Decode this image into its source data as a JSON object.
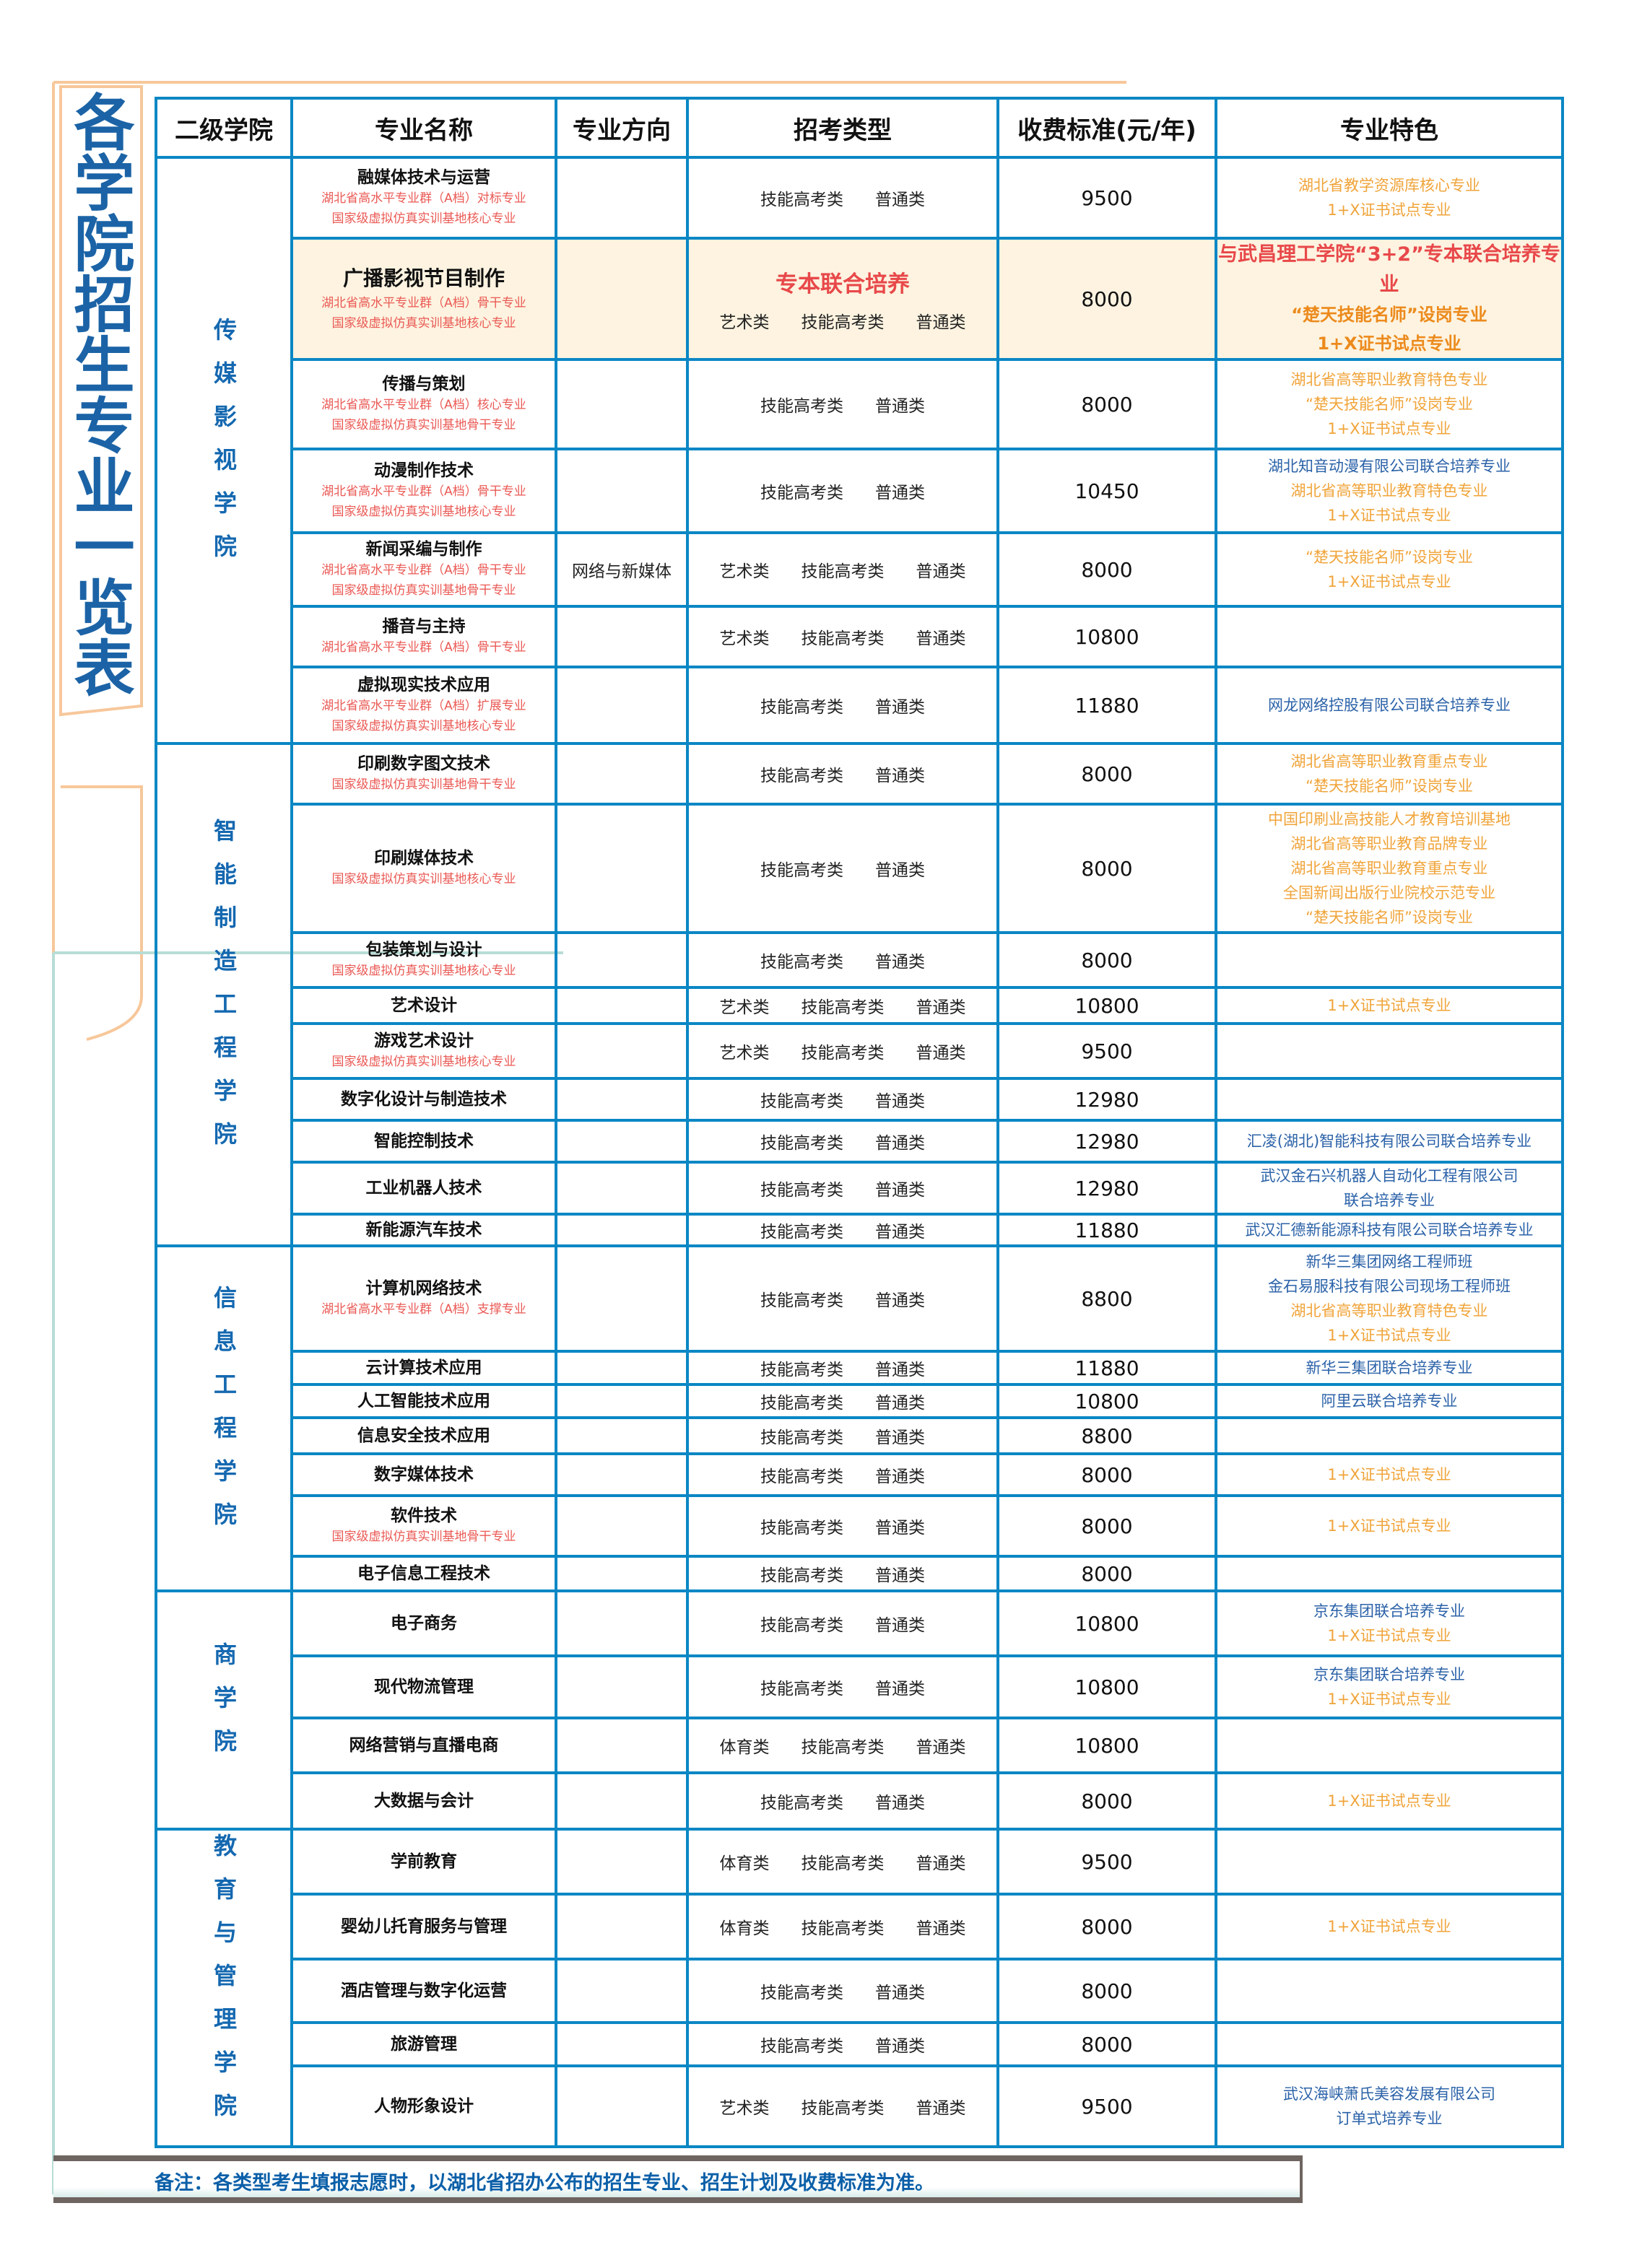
{
  "title": "各学院招生专业一览表",
  "headers": [
    "二级学院",
    "专业名称",
    "专业方向",
    "招考类型",
    "收费标准(元/年)",
    "专业特色"
  ],
  "colors": {
    "line": "#0a87c4",
    "title": "#1b63a6",
    "orange": "#f0a43a",
    "blue": "#2b62a8",
    "red": "#e8484a",
    "highlight": "#fdf3e0"
  },
  "colleges": [
    {
      "name": "传媒影视学院",
      "rows": 7
    },
    {
      "name": "智能制造工程学院",
      "rows": 9
    },
    {
      "name": "信息工程学院",
      "rows": 7
    },
    {
      "name": "商学院",
      "rows": 4
    },
    {
      "name": "教育与管理学院",
      "rows": 5
    }
  ],
  "rows": [
    {
      "name": "融媒体技术与运营",
      "subs": [
        "湖北省高水平专业群（A档）对标专业",
        "国家级虚拟仿真实训基地核心专业"
      ],
      "direction": "",
      "exam": [
        "技能高考类",
        "普通类"
      ],
      "fee": "9500",
      "features": [
        {
          "t": "湖北省教学资源库核心专业",
          "c": "orange"
        },
        {
          "t": "1+X证书试点专业",
          "c": "orange"
        }
      ]
    },
    {
      "name": "广播影视节目制作",
      "highlight": true,
      "joint": "专本联合培养",
      "subs": [
        "湖北省高水平专业群（A档）骨干专业",
        "国家级虚拟仿真实训基地核心专业"
      ],
      "direction": "",
      "exam": [
        "艺术类",
        "技能高考类",
        "普通类"
      ],
      "fee": "8000",
      "features": [
        {
          "t": "与武昌理工学院“3+2”专本联合培养专业",
          "c": "red"
        },
        {
          "t": "“楚天技能名师”设岗专业",
          "c": "orangeb"
        },
        {
          "t": "1+X证书试点专业",
          "c": "orangeb"
        }
      ]
    },
    {
      "name": "传播与策划",
      "subs": [
        "湖北省高水平专业群（A档）核心专业",
        "国家级虚拟仿真实训基地骨干专业"
      ],
      "direction": "",
      "exam": [
        "技能高考类",
        "普通类"
      ],
      "fee": "8000",
      "features": [
        {
          "t": "湖北省高等职业教育特色专业",
          "c": "orange"
        },
        {
          "t": "“楚天技能名师”设岗专业",
          "c": "orange"
        },
        {
          "t": "1+X证书试点专业",
          "c": "orange"
        }
      ]
    },
    {
      "name": "动漫制作技术",
      "subs": [
        "湖北省高水平专业群（A档）骨干专业",
        "国家级虚拟仿真实训基地核心专业"
      ],
      "direction": "",
      "exam": [
        "技能高考类",
        "普通类"
      ],
      "fee": "10450",
      "features": [
        {
          "t": "湖北知音动漫有限公司联合培养专业",
          "c": "blue"
        },
        {
          "t": "湖北省高等职业教育特色专业",
          "c": "orange"
        },
        {
          "t": "1+X证书试点专业",
          "c": "orange"
        }
      ]
    },
    {
      "name": "新闻采编与制作",
      "subs": [
        "湖北省高水平专业群（A档）骨干专业",
        "国家级虚拟仿真实训基地骨干专业"
      ],
      "direction": "网络与新媒体",
      "exam": [
        "艺术类",
        "技能高考类",
        "普通类"
      ],
      "fee": "8000",
      "features": [
        {
          "t": "“楚天技能名师”设岗专业",
          "c": "orange"
        },
        {
          "t": "1+X证书试点专业",
          "c": "orange"
        }
      ]
    },
    {
      "name": "播音与主持",
      "subs": [
        "湖北省高水平专业群（A档）骨干专业"
      ],
      "direction": "",
      "exam": [
        "艺术类",
        "技能高考类",
        "普通类"
      ],
      "fee": "10800",
      "features": []
    },
    {
      "name": "虚拟现实技术应用",
      "subs": [
        "湖北省高水平专业群（A档）扩展专业",
        "国家级虚拟仿真实训基地核心专业"
      ],
      "direction": "",
      "exam": [
        "技能高考类",
        "普通类"
      ],
      "fee": "11880",
      "features": [
        {
          "t": "网龙网络控股有限公司联合培养专业",
          "c": "blue"
        }
      ]
    },
    {
      "name": "印刷数字图文技术",
      "subs": [
        "国家级虚拟仿真实训基地骨干专业"
      ],
      "direction": "",
      "exam": [
        "技能高考类",
        "普通类"
      ],
      "fee": "8000",
      "features": [
        {
          "t": "湖北省高等职业教育重点专业",
          "c": "orange"
        },
        {
          "t": "“楚天技能名师”设岗专业",
          "c": "orange"
        }
      ]
    },
    {
      "name": "印刷媒体技术",
      "subs": [
        "国家级虚拟仿真实训基地核心专业"
      ],
      "direction": "",
      "exam": [
        "技能高考类",
        "普通类"
      ],
      "fee": "8000",
      "features": [
        {
          "t": "中国印刷业高技能人才教育培训基地",
          "c": "orange"
        },
        {
          "t": "湖北省高等职业教育品牌专业",
          "c": "orange"
        },
        {
          "t": "湖北省高等职业教育重点专业",
          "c": "orange"
        },
        {
          "t": "全国新闻出版行业院校示范专业",
          "c": "orange"
        },
        {
          "t": "“楚天技能名师”设岗专业",
          "c": "orange"
        }
      ]
    },
    {
      "name": "包装策划与设计",
      "subs": [
        "国家级虚拟仿真实训基地核心专业"
      ],
      "direction": "",
      "exam": [
        "技能高考类",
        "普通类"
      ],
      "fee": "8000",
      "features": []
    },
    {
      "name": "艺术设计",
      "subs": [],
      "direction": "",
      "exam": [
        "艺术类",
        "技能高考类",
        "普通类"
      ],
      "fee": "10800",
      "features": [
        {
          "t": "1+X证书试点专业",
          "c": "orange"
        }
      ]
    },
    {
      "name": "游戏艺术设计",
      "subs": [
        "国家级虚拟仿真实训基地核心专业"
      ],
      "direction": "",
      "exam": [
        "艺术类",
        "技能高考类",
        "普通类"
      ],
      "fee": "9500",
      "features": []
    },
    {
      "name": "数字化设计与制造技术",
      "subs": [],
      "direction": "",
      "exam": [
        "技能高考类",
        "普通类"
      ],
      "fee": "12980",
      "features": []
    },
    {
      "name": "智能控制技术",
      "subs": [],
      "direction": "",
      "exam": [
        "技能高考类",
        "普通类"
      ],
      "fee": "12980",
      "features": [
        {
          "t": "汇凌(湖北)智能科技有限公司联合培养专业",
          "c": "blue"
        }
      ]
    },
    {
      "name": "工业机器人技术",
      "subs": [],
      "direction": "",
      "exam": [
        "技能高考类",
        "普通类"
      ],
      "fee": "12980",
      "features": [
        {
          "t": "武汉金石兴机器人自动化工程有限公司",
          "c": "blue"
        },
        {
          "t": "联合培养专业",
          "c": "blue"
        }
      ]
    },
    {
      "name": "新能源汽车技术",
      "subs": [],
      "direction": "",
      "exam": [
        "技能高考类",
        "普通类"
      ],
      "fee": "11880",
      "features": [
        {
          "t": "武汉汇德新能源科技有限公司联合培养专业",
          "c": "blue"
        }
      ]
    },
    {
      "name": "计算机网络技术",
      "subs": [
        "湖北省高水平专业群（A档）支撑专业"
      ],
      "direction": "",
      "exam": [
        "技能高考类",
        "普通类"
      ],
      "fee": "8800",
      "features": [
        {
          "t": "新华三集团网络工程师班",
          "c": "blue"
        },
        {
          "t": "金石易服科技有限公司现场工程师班",
          "c": "blue"
        },
        {
          "t": "湖北省高等职业教育特色专业",
          "c": "orange"
        },
        {
          "t": "1+X证书试点专业",
          "c": "orange"
        }
      ]
    },
    {
      "name": "云计算技术应用",
      "subs": [],
      "direction": "",
      "exam": [
        "技能高考类",
        "普通类"
      ],
      "fee": "11880",
      "features": [
        {
          "t": "新华三集团联合培养专业",
          "c": "blue"
        }
      ]
    },
    {
      "name": "人工智能技术应用",
      "subs": [],
      "direction": "",
      "exam": [
        "技能高考类",
        "普通类"
      ],
      "fee": "10800",
      "features": [
        {
          "t": "阿里云联合培养专业",
          "c": "blue"
        }
      ]
    },
    {
      "name": "信息安全技术应用",
      "subs": [],
      "direction": "",
      "exam": [
        "技能高考类",
        "普通类"
      ],
      "fee": "8800",
      "features": []
    },
    {
      "name": "数字媒体技术",
      "subs": [],
      "direction": "",
      "exam": [
        "技能高考类",
        "普通类"
      ],
      "fee": "8000",
      "features": [
        {
          "t": "1+X证书试点专业",
          "c": "orange"
        }
      ]
    },
    {
      "name": "软件技术",
      "subs": [
        "国家级虚拟仿真实训基地骨干专业"
      ],
      "direction": "",
      "exam": [
        "技能高考类",
        "普通类"
      ],
      "fee": "8000",
      "features": [
        {
          "t": "1+X证书试点专业",
          "c": "orange"
        }
      ]
    },
    {
      "name": "电子信息工程技术",
      "subs": [],
      "direction": "",
      "exam": [
        "技能高考类",
        "普通类"
      ],
      "fee": "8000",
      "features": []
    },
    {
      "name": "电子商务",
      "subs": [],
      "direction": "",
      "exam": [
        "技能高考类",
        "普通类"
      ],
      "fee": "10800",
      "features": [
        {
          "t": "京东集团联合培养专业",
          "c": "blue"
        },
        {
          "t": "1+X证书试点专业",
          "c": "orange"
        }
      ]
    },
    {
      "name": "现代物流管理",
      "subs": [],
      "direction": "",
      "exam": [
        "技能高考类",
        "普通类"
      ],
      "fee": "10800",
      "features": [
        {
          "t": "京东集团联合培养专业",
          "c": "blue"
        },
        {
          "t": "1+X证书试点专业",
          "c": "orange"
        }
      ]
    },
    {
      "name": "网络营销与直播电商",
      "subs": [],
      "direction": "",
      "exam": [
        "体育类",
        "技能高考类",
        "普通类"
      ],
      "fee": "10800",
      "features": []
    },
    {
      "name": "大数据与会计",
      "subs": [],
      "direction": "",
      "exam": [
        "技能高考类",
        "普通类"
      ],
      "fee": "8000",
      "features": [
        {
          "t": "1+X证书试点专业",
          "c": "orange"
        }
      ]
    },
    {
      "name": "学前教育",
      "subs": [],
      "direction": "",
      "exam": [
        "体育类",
        "技能高考类",
        "普通类"
      ],
      "fee": "9500",
      "features": []
    },
    {
      "name": "婴幼儿托育服务与管理",
      "subs": [],
      "direction": "",
      "exam": [
        "体育类",
        "技能高考类",
        "普通类"
      ],
      "fee": "8000",
      "features": [
        {
          "t": "1+X证书试点专业",
          "c": "orange"
        }
      ]
    },
    {
      "name": "酒店管理与数字化运营",
      "subs": [],
      "direction": "",
      "exam": [
        "技能高考类",
        "普通类"
      ],
      "fee": "8000",
      "features": []
    },
    {
      "name": "旅游管理",
      "subs": [],
      "direction": "",
      "exam": [
        "技能高考类",
        "普通类"
      ],
      "fee": "8000",
      "features": []
    },
    {
      "name": "人物形象设计",
      "subs": [],
      "direction": "",
      "exam": [
        "艺术类",
        "技能高考类",
        "普通类"
      ],
      "fee": "9500",
      "features": [
        {
          "t": "武汉海峡萧氏美容发展有限公司",
          "c": "blue"
        },
        {
          "t": "订单式培养专业",
          "c": "blue"
        }
      ]
    }
  ],
  "note": "备注：各类型考生填报志愿时，以湖北省招办公布的招生专业、招生计划及收费标准为准。"
}
